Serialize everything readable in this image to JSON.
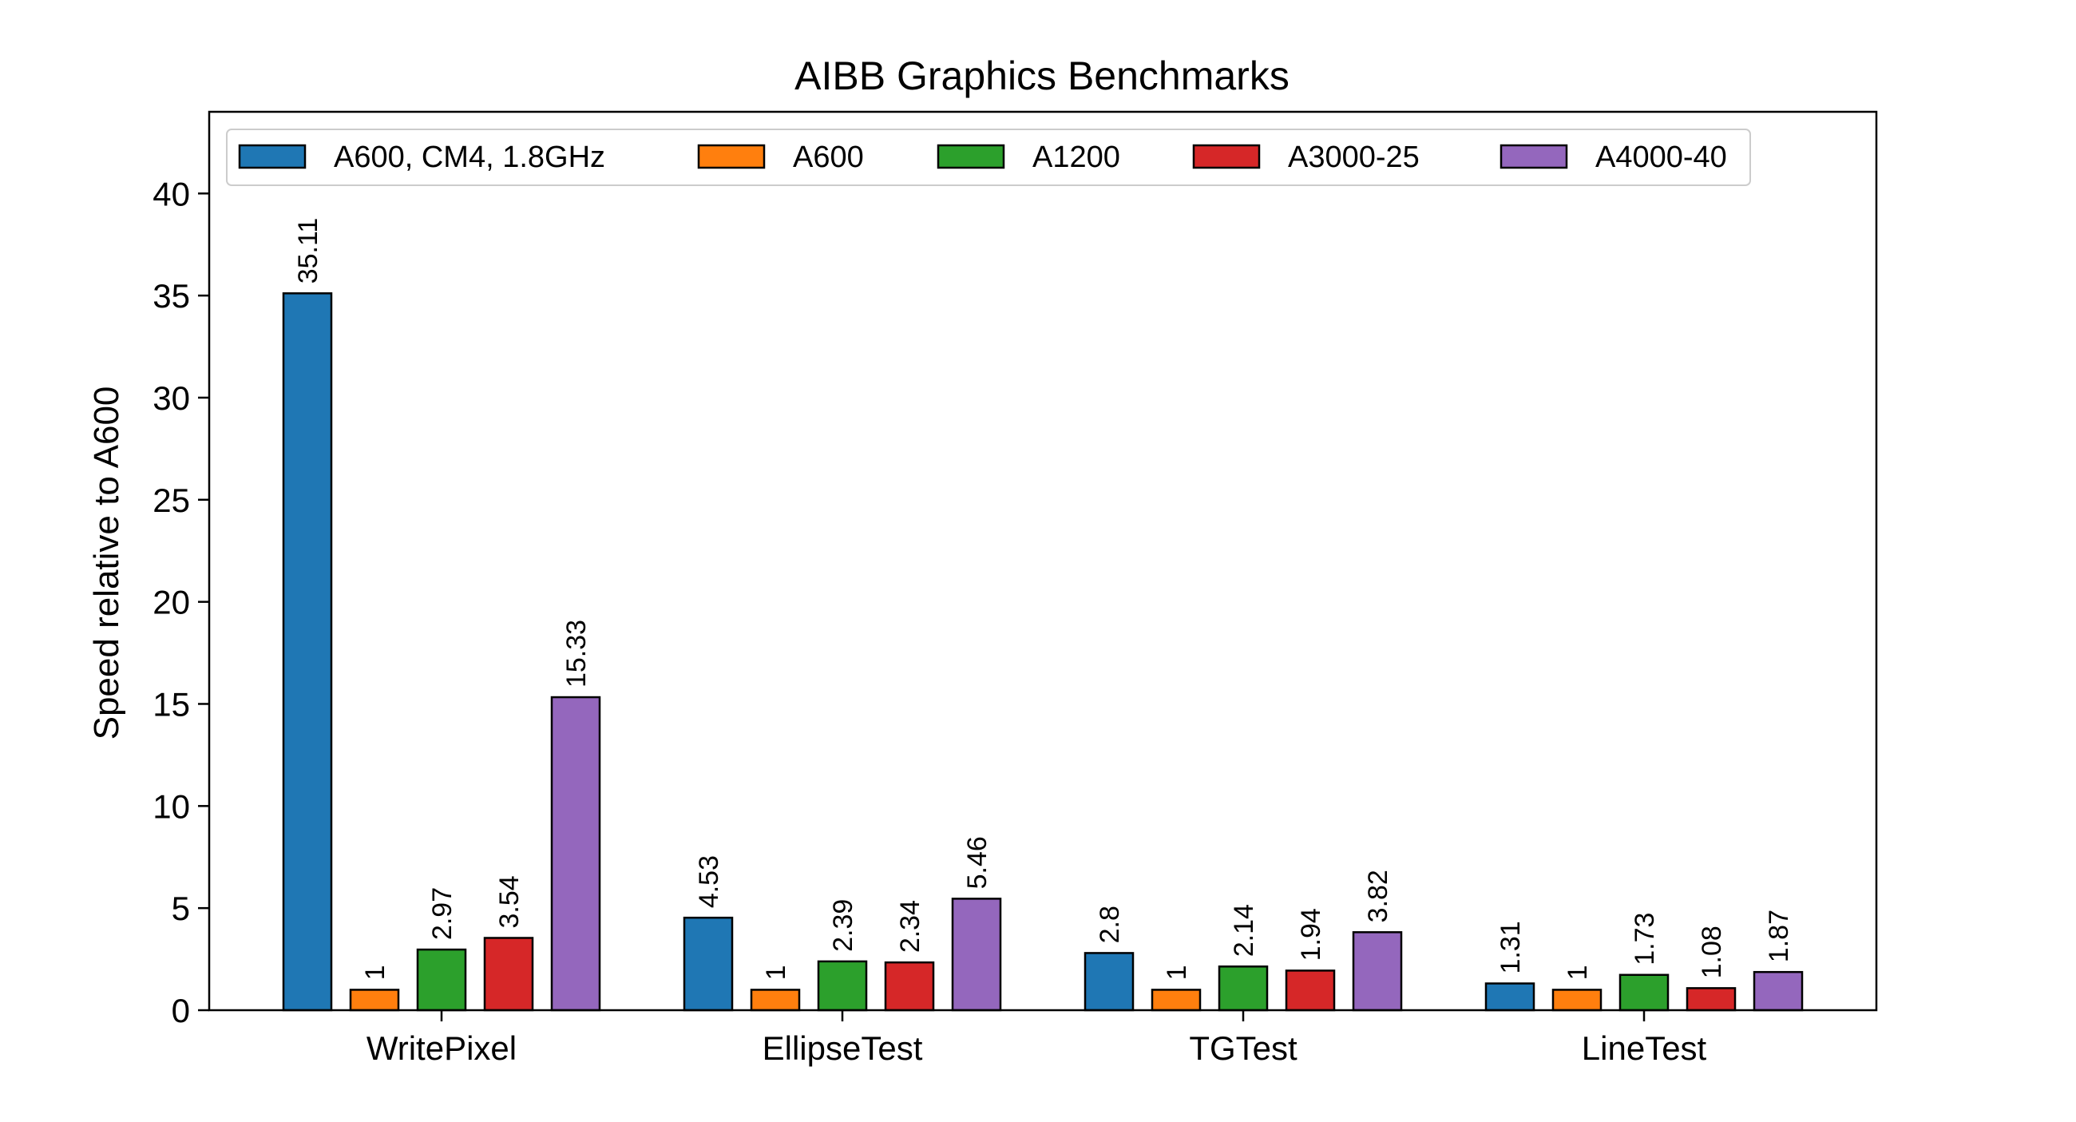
{
  "chart_data": {
    "type": "bar",
    "title": "AIBB Graphics Benchmarks",
    "xlabel": "",
    "ylabel": "Speed relative to A600",
    "ylim": [
      0,
      44
    ],
    "yticks": [
      0,
      5,
      10,
      15,
      20,
      25,
      30,
      35,
      40
    ],
    "categories": [
      "WritePixel",
      "EllipseTest",
      "TGTest",
      "LineTest"
    ],
    "legend_position": "top",
    "grid": false,
    "series": [
      {
        "name": "A600, CM4, 1.8GHz",
        "color": "#1f77b4",
        "values": [
          35.11,
          4.53,
          2.8,
          1.31
        ]
      },
      {
        "name": "A600",
        "color": "#ff7f0e",
        "values": [
          1,
          1,
          1,
          1
        ]
      },
      {
        "name": "A1200",
        "color": "#2ca02c",
        "values": [
          2.97,
          2.39,
          2.14,
          1.73
        ]
      },
      {
        "name": "A3000-25",
        "color": "#d62728",
        "values": [
          3.54,
          2.34,
          1.94,
          1.08
        ]
      },
      {
        "name": "A4000-40",
        "color": "#9467bd",
        "values": [
          15.33,
          5.46,
          3.82,
          1.87
        ]
      }
    ]
  }
}
